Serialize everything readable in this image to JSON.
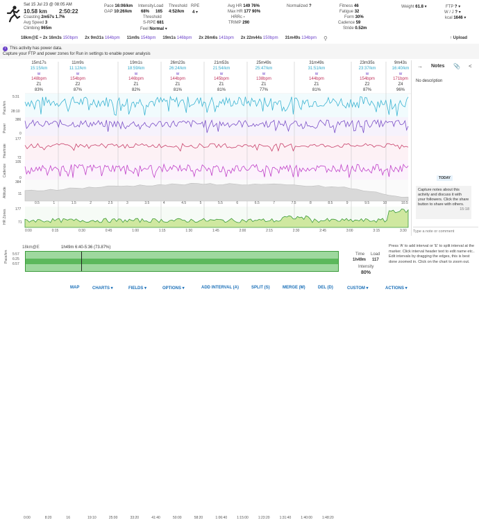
{
  "activity": {
    "date": "Sat 15 Jul 23 @ 08:05 AM",
    "distance": "10.58 km",
    "duration": "2:50:22",
    "coasting": "2m57s",
    "coasting_pct": "1.7%",
    "avg_speed": "3",
    "climbing": "965m"
  },
  "stats_col2": {
    "pace_label": "Pace",
    "pace": "16:06/km",
    "gap_label": "GAP",
    "gap": "10:26/km",
    "intensity_label": "Intensity",
    "intensity": "68%",
    "load_label": "Load",
    "load": "165",
    "threshold_label": "Threshold",
    "threshold": "4:52/km",
    "rpe_label": "RPE",
    "rpe": "4",
    "threshold2_label": "Threshold",
    "srpe_label": "S-RPE",
    "srpe": "681",
    "feel_label": "Feel",
    "feel": "Normal"
  },
  "stats_col3": {
    "avg_hr_label": "Avg HR",
    "avg_hr": "149",
    "avg_hr_pct": "76%",
    "max_hr_label": "Max HR",
    "max_hr": "177",
    "max_hr_pct": "90%",
    "hrrc_label": "HRRc",
    "hrrc": "-",
    "trimp_label": "TRIMP",
    "trimp": "290"
  },
  "stats_col4": {
    "normalized_label": "Normalized",
    "normalized": "?"
  },
  "stats_col5": {
    "fitness_label": "Fitness",
    "fitness": "46",
    "fatigue_label": "Fatigue",
    "fatigue": "32",
    "form_label": "Form",
    "form": "30%",
    "cadence_label": "Cadence",
    "cadence": "59",
    "stride_label": "Stride",
    "stride": "0.52m"
  },
  "stats_col6": {
    "weight_label": "Weight",
    "weight": "61.8"
  },
  "stats_col7": {
    "ftp_label": "FTP",
    "ftp": "?",
    "wkg_label": "W / J",
    "wkg": "?",
    "kcal_label": "kcal",
    "kcal": "1646"
  },
  "upload_label": "Upload",
  "chips": [
    {
      "prefix": "18km@E",
      "sep": "≈",
      "count": "2x",
      "a": "16m3s",
      "b": "150bpm"
    },
    {
      "count": "2x",
      "a": "9m31s",
      "b": "164bpm"
    },
    {
      "count": "",
      "a": "11m9s",
      "b": "154bpm"
    },
    {
      "count": "",
      "a": "19m1s",
      "b": "146bpm"
    },
    {
      "count": "2x",
      "a": "26m6s",
      "b": "141bpm"
    },
    {
      "count": "2x",
      "a": "22m44s",
      "b": "150bpm"
    },
    {
      "count": "",
      "a": "31m49s",
      "b": "134bpm"
    }
  ],
  "banner": {
    "line1": "This activity has power data.",
    "line2": "Capture your FTP and power zones for Run in settings to enable power analysis"
  },
  "intervals": [
    {
      "time": "15m17s",
      "pace": "15:15/km",
      "power": "w",
      "hr": "148bpm",
      "zone": "Z1",
      "pct": "83%"
    },
    {
      "time": "11m9s",
      "pace": "11:12/km",
      "power": "w",
      "hr": "154bpm",
      "zone": "Z2",
      "pct": "87%"
    },
    {
      "time": "19m1s",
      "pace": "18:59/km",
      "power": "w",
      "hr": "146bpm",
      "zone": "Z1",
      "pct": "82%"
    },
    {
      "time": "26m23s",
      "pace": "26:24/km",
      "power": "w",
      "hr": "144bpm",
      "zone": "Z1",
      "pct": "81%"
    },
    {
      "time": "21m53s",
      "pace": "21:54/km",
      "power": "w",
      "hr": "145bpm",
      "zone": "Z1",
      "pct": "81%"
    },
    {
      "time": "25m49s",
      "pace": "25:47/km",
      "power": "w",
      "hr": "138bpm",
      "zone": "Z1",
      "pct": "77%"
    },
    {
      "time": "31m49s",
      "pace": "31:51/km",
      "power": "w",
      "hr": "144bpm",
      "zone": "Z1",
      "pct": "81%"
    },
    {
      "time": "23m35s",
      "pace": "23:37/km",
      "power": "w",
      "hr": "154bpm",
      "zone": "Z2",
      "pct": "87%"
    },
    {
      "time": "9m43s",
      "pace": "16:40/km",
      "power": "w",
      "hr": "171bpm",
      "zone": "Z4",
      "pct": "96%"
    }
  ],
  "rows": {
    "pace": "Pace/km",
    "power": "Power",
    "hr": "Heartrate",
    "cadence": "Cadence",
    "altitude": "Altitude",
    "zones": "HR Zones"
  },
  "row_ticks": {
    "pace_a": "5:31",
    "pace_b": "28:10",
    "power_a": "386",
    "power_b": "0",
    "hr_a": "177",
    "hr_b": "72",
    "cad_a": "105",
    "cad_b": "0",
    "alt_a": "384",
    "alt_b": "11",
    "z_a": "177",
    "z_b": "71"
  },
  "dist_ticks": [
    "0.5",
    "1",
    "1.5",
    "2",
    "2.5",
    "3",
    "3.5",
    "4",
    "4.5",
    "5",
    "5.5",
    "6",
    "6.5",
    "7",
    "7.5",
    "8",
    "8.5",
    "9",
    "9.5",
    "10",
    "10.5"
  ],
  "time_ticks": [
    "0:00",
    "0:15",
    "0:30",
    "0:45",
    "1:00",
    "1:15",
    "1:30",
    "1:45",
    "2:00",
    "2:15",
    "2:30",
    "2:45",
    "3:00",
    "3:15",
    "3:30"
  ],
  "notes": {
    "title": "Notes",
    "desc": "No description",
    "today": "TODAY",
    "msg": "Capture notes about this activity and discuss it with your followers. Click the share button to share with others.",
    "msg_time": "15:18",
    "placeholder": "Type a note or comment"
  },
  "mini": {
    "label": "18km@E",
    "interval": "1h49m 6:40-5:36 (73.87%)",
    "pace_ticks": [
      "5:57",
      "6:25",
      "6:57"
    ],
    "x_ticks": [
      "0:00",
      "8:20",
      "16",
      "19:10",
      "25:00",
      "33:20",
      "41:40",
      "50:00",
      "58:20",
      "1:06:40",
      "1:15:00",
      "1:23:20",
      "1:31:40",
      "1:40:00",
      "1:48:20"
    ],
    "time_label": "Time",
    "time": "1h49m",
    "load_label": "Load",
    "load": "117",
    "intensity_label": "Intensity",
    "intensity": "80%"
  },
  "help": "Press 'A' to add interval or 'E' to split interval at the marker. Click interval header text to edit name etc.. Edit intervals by dragging the edges, this is best done zoomed in. Click on the chart to zoom out.",
  "toolbar": [
    "MAP",
    "CHARTS ▾",
    "FIELDS ▾",
    "OPTIONS ▾",
    "ADD INTERVAL (A)",
    "SPLIT (S)",
    "MERGE (M)",
    "DEL (D)",
    "CUSTOM ▾",
    "ACTIONS ▾"
  ],
  "colors": {
    "pace": "#39b3d2",
    "power": "#7a4fc7",
    "hr": "#c8406a",
    "cadence": "#c040c8",
    "altitude": "#bdbdbd",
    "zone": "#3a9a3a",
    "accent": "#1a6fb8"
  }
}
